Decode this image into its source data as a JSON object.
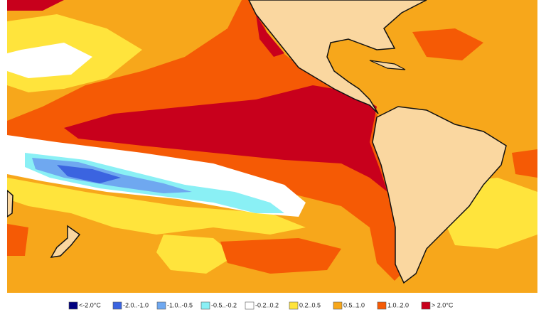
{
  "legend": [
    {
      "label": "<-2.0°C",
      "color": "#00007f"
    },
    {
      "label": "-2.0..-1.0",
      "color": "#3b64e0"
    },
    {
      "label": "-1.0..-0.5",
      "color": "#6fa8f0"
    },
    {
      "label": "-0.5..-0.2",
      "color": "#8af0f5"
    },
    {
      "label": "-0.2..0.2",
      "color": "#ffffff"
    },
    {
      "label": "0.2..0.5",
      "color": "#ffe43c"
    },
    {
      "label": "0.5..1.0",
      "color": "#f7a71b"
    },
    {
      "label": "1.0..2.0",
      "color": "#f55a05"
    },
    {
      "label": "> 2.0°C",
      "color": "#c8001c"
    }
  ]
}
